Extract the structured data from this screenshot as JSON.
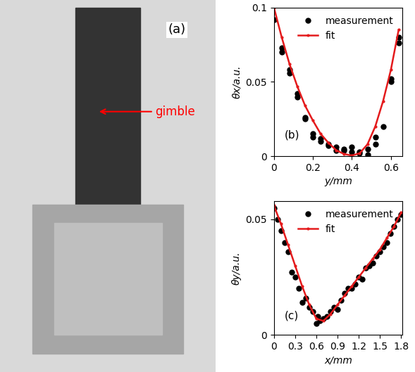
{
  "photo": {
    "label": "(a)",
    "annotation": "gimble"
  },
  "chart_data": [
    {
      "type": "scatter",
      "x_label": "y/mm",
      "y_label": "θx/a.u.",
      "annotations": [
        "(b)"
      ],
      "legend": "upper right",
      "xlim": [
        0,
        0.66
      ],
      "ylim": [
        0,
        0.1
      ],
      "xticks": [
        0,
        0.2,
        0.4,
        0.6
      ],
      "yticks": [
        0,
        0.05,
        0.1
      ],
      "series": [
        {
          "name": "measurement",
          "type": "scatter",
          "color": "#000000",
          "marker": "o",
          "line_style": "none",
          "x": [
            0,
            0.04,
            0.04,
            0.08,
            0.08,
            0.12,
            0.12,
            0.16,
            0.16,
            0.2,
            0.2,
            0.24,
            0.24,
            0.28,
            0.28,
            0.32,
            0.32,
            0.36,
            0.36,
            0.4,
            0.4,
            0.44,
            0.44,
            0.48,
            0.48,
            0.52,
            0.52,
            0.56,
            0.6,
            0.6,
            0.64,
            0.64
          ],
          "values": [
            0.092,
            0.073,
            0.07,
            0.058,
            0.056,
            0.04,
            0.042,
            0.026,
            0.025,
            0.015,
            0.013,
            0.012,
            0.01,
            0.008,
            0.007,
            0.006,
            0.004,
            0.005,
            0.004,
            0.006,
            0.003,
            0.003,
            0.002,
            0.001,
            0.005,
            0.013,
            0.008,
            0.02,
            0.05,
            0.052,
            0.08,
            0.076
          ]
        },
        {
          "name": "fit",
          "type": "line",
          "color": "#e41a1c",
          "marker": ".",
          "line_style": "solid",
          "x": [
            0,
            0.04,
            0.08,
            0.12,
            0.16,
            0.2,
            0.24,
            0.28,
            0.32,
            0.36,
            0.4,
            0.44,
            0.48,
            0.52,
            0.56,
            0.6,
            0.64
          ],
          "values": [
            0.1,
            0.08,
            0.062,
            0.047,
            0.034,
            0.024,
            0.015,
            0.009,
            0.004,
            0.0015,
            0.0005,
            0.002,
            0.008,
            0.02,
            0.037,
            0.058,
            0.085
          ]
        }
      ]
    },
    {
      "type": "scatter",
      "x_label": "x/mm",
      "y_label": "θy/a.u.",
      "annotations": [
        "(c)"
      ],
      "legend": "upper right",
      "xlim": [
        0,
        1.82
      ],
      "ylim": [
        0,
        0.058
      ],
      "xticks": [
        0,
        0.3,
        0.6,
        0.9,
        1.2,
        1.5,
        1.8
      ],
      "yticks": [
        0,
        0.05
      ],
      "series": [
        {
          "name": "measurement",
          "type": "scatter",
          "color": "#000000",
          "marker": "o",
          "line_style": "none",
          "x": [
            0,
            0.05,
            0.1,
            0.15,
            0.2,
            0.25,
            0.3,
            0.35,
            0.4,
            0.45,
            0.5,
            0.55,
            0.6,
            0.62,
            0.65,
            0.7,
            0.75,
            0.8,
            0.85,
            0.9,
            0.95,
            1.0,
            1.05,
            1.1,
            1.15,
            1.2,
            1.25,
            1.3,
            1.35,
            1.4,
            1.45,
            1.5,
            1.55,
            1.6,
            1.65,
            1.7,
            1.75,
            1.8
          ],
          "values": [
            0.055,
            0.05,
            0.045,
            0.04,
            0.036,
            0.027,
            0.025,
            0.02,
            0.014,
            0.016,
            0.012,
            0.01,
            0.005,
            0.008,
            0.006,
            0.007,
            0.008,
            0.01,
            0.012,
            0.011,
            0.015,
            0.018,
            0.02,
            0.02,
            0.022,
            0.025,
            0.024,
            0.029,
            0.03,
            0.031,
            0.034,
            0.036,
            0.038,
            0.04,
            0.044,
            0.047,
            0.05,
            0.052
          ]
        },
        {
          "name": "fit",
          "type": "line",
          "color": "#e41a1c",
          "marker": ".",
          "line_style": "solid",
          "x": [
            0,
            0.1,
            0.2,
            0.3,
            0.4,
            0.5,
            0.6,
            0.7,
            0.8,
            0.9,
            1.0,
            1.1,
            1.2,
            1.3,
            1.4,
            1.5,
            1.6,
            1.7,
            1.8
          ],
          "values": [
            0.056,
            0.048,
            0.039,
            0.03,
            0.021,
            0.013,
            0.007,
            0.006,
            0.009,
            0.013,
            0.017,
            0.021,
            0.025,
            0.029,
            0.033,
            0.037,
            0.042,
            0.047,
            0.053
          ]
        }
      ]
    }
  ]
}
